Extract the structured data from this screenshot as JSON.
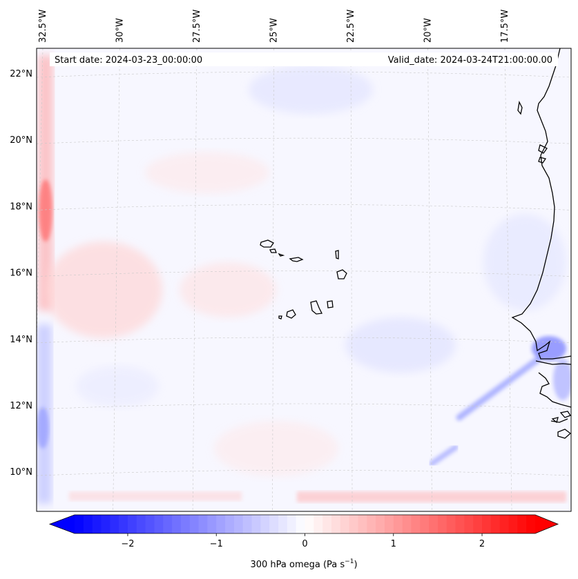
{
  "header": {
    "start_date": "Start date: 2024-03-23_00:00:00",
    "valid_date": "Valid_date: 2024-03-24T21:00:00.00"
  },
  "longitudes": [
    {
      "label": "32.5°W",
      "value": -32.5
    },
    {
      "label": "30°W",
      "value": -30
    },
    {
      "label": "27.5°W",
      "value": -27.5
    },
    {
      "label": "25°W",
      "value": -25
    },
    {
      "label": "22.5°W",
      "value": -22.5
    },
    {
      "label": "20°W",
      "value": -20
    },
    {
      "label": "17.5°W",
      "value": -17.5
    }
  ],
  "latitudes": [
    {
      "label": "22°N",
      "value": 22
    },
    {
      "label": "20°N",
      "value": 20
    },
    {
      "label": "18°N",
      "value": 18
    },
    {
      "label": "16°N",
      "value": 16
    },
    {
      "label": "14°N",
      "value": 14
    },
    {
      "label": "12°N",
      "value": 12
    },
    {
      "label": "10°N",
      "value": 10
    }
  ],
  "colorbar": {
    "label": "300 hPa omega (Pa s",
    "label_sup": "−1",
    "label_end": ")",
    "min": -2.6,
    "max": 2.6,
    "levels": 52,
    "ticks": [
      {
        "label": "−2",
        "value": -2
      },
      {
        "label": "−1",
        "value": -1
      },
      {
        "label": "0",
        "value": 0
      },
      {
        "label": "1",
        "value": 1
      },
      {
        "label": "2",
        "value": 2
      }
    ],
    "negative_color": "#0000ff",
    "positive_color": "#ff0000",
    "neutral_color": "#ffffff"
  },
  "colors": {
    "background_field": "#f7f7ff",
    "coastline": "#000000",
    "gridline": "#c8c8c8"
  }
}
